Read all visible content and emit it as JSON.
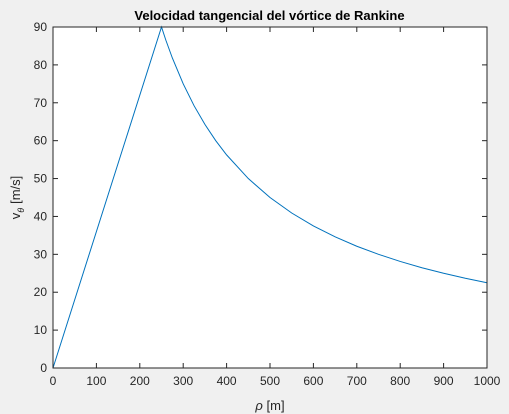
{
  "chart_data": {
    "type": "line",
    "title": "Velocidad tangencial del vórtice de Rankine",
    "xlabel": {
      "symbol": "ρ",
      "unit": "[m]"
    },
    "ylabel": {
      "base": "v",
      "subscript": "θ",
      "unit": "[m/s]"
    },
    "xlim": [
      0,
      1000
    ],
    "ylim": [
      0,
      90
    ],
    "xticks": [
      0,
      100,
      200,
      300,
      400,
      500,
      600,
      700,
      800,
      900,
      1000
    ],
    "yticks": [
      0,
      10,
      20,
      30,
      40,
      50,
      60,
      70,
      80,
      90
    ],
    "grid": false,
    "box": true,
    "series": [
      {
        "color": "#0072bd",
        "x": [
          0,
          250,
          260,
          275,
          300,
          325,
          350,
          375,
          400,
          450,
          500,
          550,
          600,
          650,
          700,
          750,
          800,
          850,
          900,
          950,
          1000
        ],
        "y": [
          0,
          90,
          86.54,
          81.82,
          75.0,
          69.23,
          64.29,
          60.0,
          56.25,
          50.0,
          45.0,
          40.91,
          37.5,
          34.62,
          32.14,
          30.0,
          28.13,
          26.47,
          25.0,
          23.68,
          22.5
        ]
      }
    ]
  }
}
